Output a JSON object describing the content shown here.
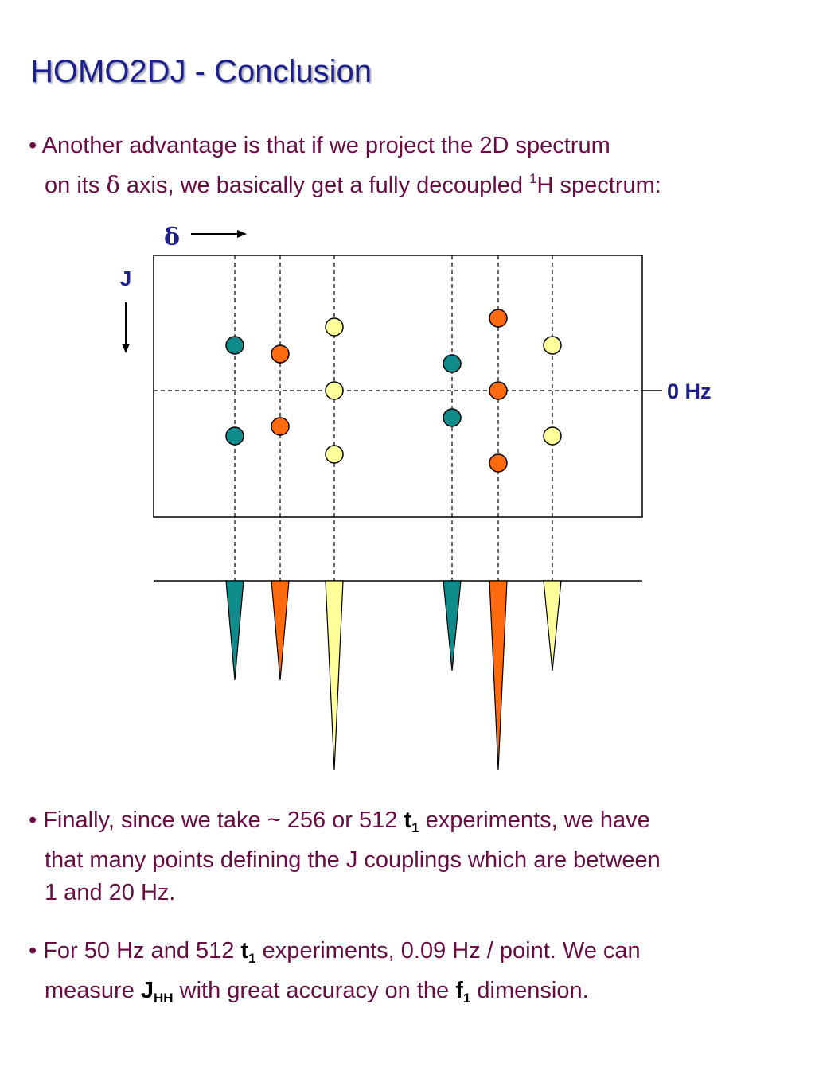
{
  "title": "HOMO2DJ - Conclusion",
  "bullets": {
    "b1": {
      "marker": "•",
      "l1": "Another advantage is that if we project the 2D spectrum",
      "l2a": "on its ",
      "l2sym": "δ",
      "l2b": " axis, we basically get a fully decoupled ",
      "l2sup": "1",
      "l2c": "H spectrum:"
    },
    "b2": {
      "marker": "•",
      "l1a": "Finally, since we take ~ 256 or 512 ",
      "t": "t",
      "tsub": "1",
      "l1b": " experiments, we have",
      "l2": "that many points defining the J couplings which are between",
      "l3": "1 and 20 Hz."
    },
    "b3": {
      "marker": "•",
      "l1a": "For 50 Hz and 512 ",
      "t": "t",
      "tsub": "1",
      "l1b": " experiments, 0.09 Hz / point. We can",
      "l2a": "measure ",
      "J": "J",
      "Jsub": "HH",
      "l2b": " with great accuracy on the ",
      "f": "f",
      "fsub": "1",
      "l2c": " dimension."
    }
  },
  "diagram": {
    "delta_label": "δ",
    "j_label": "J",
    "zero_label": "0 Hz",
    "colors": {
      "teal": "#0e8c8c",
      "orange": "#ff6a0e",
      "yellow": "#ffff99"
    }
  }
}
